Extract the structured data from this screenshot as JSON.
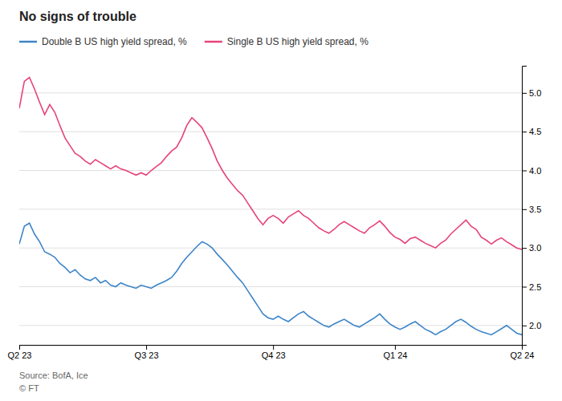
{
  "chart_data": {
    "type": "line",
    "title": "No signs of trouble",
    "annotations": [
      "Source: BofA, Ice",
      "© FT"
    ],
    "legend": "top-left",
    "grid": true,
    "categories": [
      "Q2 23",
      null,
      null,
      null,
      null,
      null,
      null,
      null,
      null,
      null,
      null,
      null,
      null,
      null,
      null,
      null,
      null,
      null,
      null,
      null,
      null,
      null,
      null,
      null,
      null,
      "Q3 23",
      null,
      null,
      null,
      null,
      null,
      null,
      null,
      null,
      null,
      null,
      null,
      null,
      null,
      null,
      null,
      null,
      null,
      null,
      null,
      null,
      null,
      null,
      null,
      null,
      "Q4 23",
      null,
      null,
      null,
      null,
      null,
      null,
      null,
      null,
      null,
      null,
      null,
      null,
      null,
      null,
      null,
      null,
      null,
      null,
      null,
      null,
      null,
      null,
      null,
      "Q1 24",
      null,
      null,
      null,
      null,
      null,
      null,
      null,
      null,
      null,
      null,
      null,
      null,
      null,
      null,
      null,
      null,
      null,
      null,
      null,
      null,
      null,
      null,
      null,
      null,
      "Q2 24"
    ],
    "ylim": [
      1.75,
      5.35
    ],
    "yticks": [
      {
        "value": 2.0,
        "label": "2.0"
      },
      {
        "value": 2.5,
        "label": "2.5"
      },
      {
        "value": 3.0,
        "label": "3.0"
      },
      {
        "value": 3.5,
        "label": "3.5"
      },
      {
        "value": 4.0,
        "label": "4.0"
      },
      {
        "value": 4.5,
        "label": "4.5"
      },
      {
        "value": 5.0,
        "label": "5.0"
      }
    ],
    "series": [
      {
        "name": "Double B US high yield spread, %",
        "color": "#3d85c8",
        "values": [
          3.05,
          3.28,
          3.32,
          3.18,
          3.08,
          2.95,
          2.92,
          2.88,
          2.8,
          2.75,
          2.68,
          2.72,
          2.65,
          2.6,
          2.58,
          2.62,
          2.55,
          2.58,
          2.52,
          2.5,
          2.55,
          2.52,
          2.5,
          2.48,
          2.52,
          2.5,
          2.48,
          2.52,
          2.55,
          2.58,
          2.62,
          2.7,
          2.8,
          2.88,
          2.95,
          3.02,
          3.08,
          3.05,
          3.0,
          2.92,
          2.85,
          2.78,
          2.7,
          2.62,
          2.55,
          2.45,
          2.35,
          2.25,
          2.15,
          2.1,
          2.08,
          2.12,
          2.08,
          2.05,
          2.1,
          2.15,
          2.18,
          2.12,
          2.08,
          2.04,
          2.0,
          1.98,
          2.02,
          2.05,
          2.08,
          2.04,
          2.0,
          1.98,
          2.02,
          2.06,
          2.1,
          2.15,
          2.08,
          2.02,
          1.98,
          1.95,
          1.98,
          2.02,
          2.05,
          2.0,
          1.95,
          1.92,
          1.88,
          1.92,
          1.95,
          2.0,
          2.05,
          2.08,
          2.04,
          1.99,
          1.95,
          1.92,
          1.9,
          1.88,
          1.92,
          1.96,
          2.0,
          1.95,
          1.9,
          1.88
        ]
      },
      {
        "name": "Single B US high yield spread, %",
        "color": "#e6437a",
        "values": [
          4.8,
          5.15,
          5.2,
          5.05,
          4.88,
          4.72,
          4.85,
          4.75,
          4.58,
          4.42,
          4.32,
          4.22,
          4.18,
          4.12,
          4.08,
          4.14,
          4.1,
          4.06,
          4.02,
          4.06,
          4.02,
          4.0,
          3.97,
          3.94,
          3.97,
          3.94,
          4.0,
          4.05,
          4.1,
          4.18,
          4.25,
          4.3,
          4.42,
          4.58,
          4.68,
          4.62,
          4.55,
          4.42,
          4.28,
          4.12,
          4.0,
          3.9,
          3.82,
          3.74,
          3.68,
          3.58,
          3.48,
          3.38,
          3.3,
          3.38,
          3.42,
          3.38,
          3.32,
          3.4,
          3.44,
          3.48,
          3.42,
          3.38,
          3.32,
          3.26,
          3.22,
          3.19,
          3.24,
          3.3,
          3.34,
          3.3,
          3.26,
          3.22,
          3.19,
          3.26,
          3.3,
          3.35,
          3.28,
          3.2,
          3.14,
          3.11,
          3.06,
          3.12,
          3.14,
          3.1,
          3.06,
          3.03,
          3.0,
          3.06,
          3.1,
          3.18,
          3.24,
          3.3,
          3.36,
          3.28,
          3.24,
          3.14,
          3.1,
          3.05,
          3.1,
          3.13,
          3.08,
          3.04,
          3.0,
          2.98
        ]
      }
    ]
  }
}
